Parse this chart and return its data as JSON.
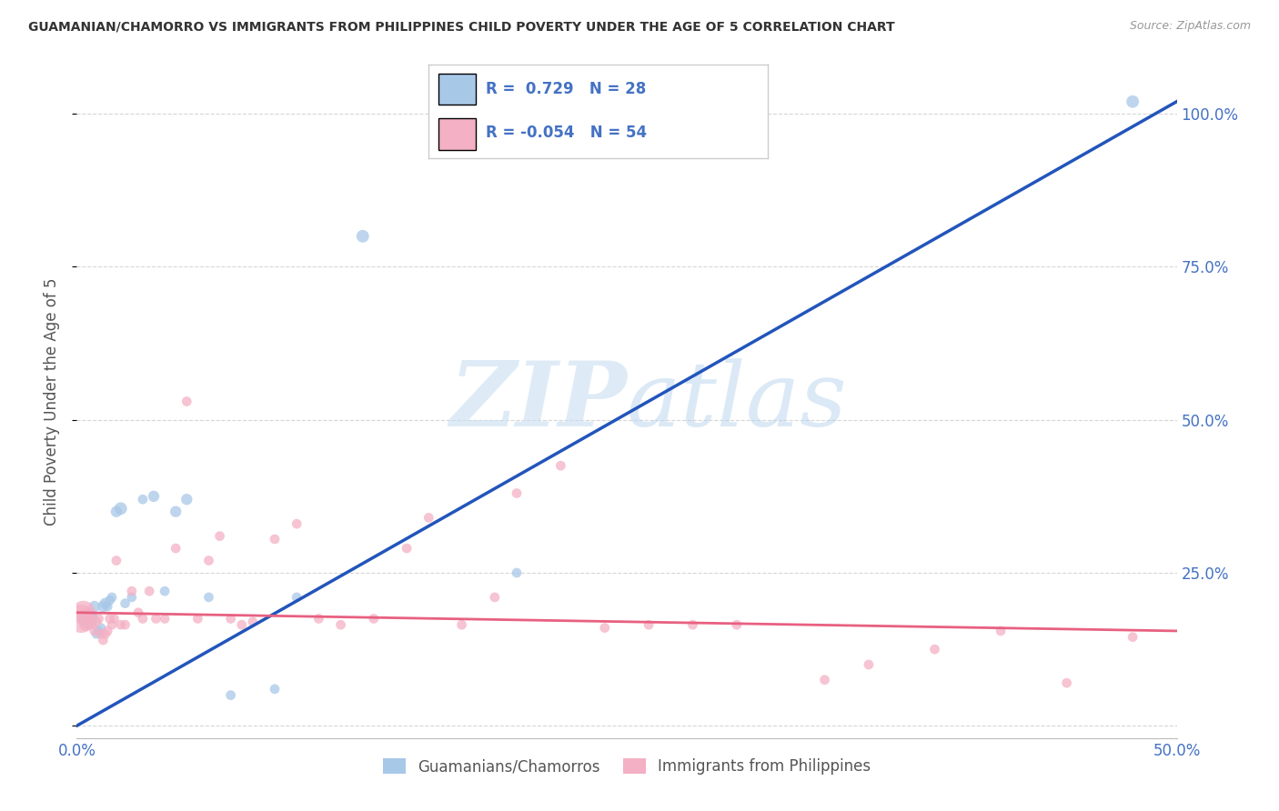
{
  "title": "GUAMANIAN/CHAMORRO VS IMMIGRANTS FROM PHILIPPINES CHILD POVERTY UNDER THE AGE OF 5 CORRELATION CHART",
  "source": "Source: ZipAtlas.com",
  "ylabel": "Child Poverty Under the Age of 5",
  "xlim": [
    0.0,
    0.5
  ],
  "ylim": [
    -0.02,
    1.08
  ],
  "blue_R": 0.729,
  "blue_N": 28,
  "pink_R": -0.054,
  "pink_N": 54,
  "blue_color": "#a8c8e8",
  "pink_color": "#f4b0c4",
  "blue_line_color": "#2255bb",
  "pink_line_color": "#e86080",
  "legend_label_blue": "Guamanians/Chamorros",
  "legend_label_pink": "Immigrants from Philippines",
  "blue_line_x0": 0.0,
  "blue_line_y0": 0.0,
  "blue_line_x1": 0.5,
  "blue_line_y1": 1.02,
  "pink_line_x0": 0.0,
  "pink_line_y0": 0.185,
  "pink_line_x1": 0.5,
  "pink_line_y1": 0.155,
  "blue_points_x": [
    0.003,
    0.005,
    0.007,
    0.008,
    0.009,
    0.01,
    0.011,
    0.012,
    0.013,
    0.014,
    0.015,
    0.016,
    0.018,
    0.02,
    0.022,
    0.025,
    0.03,
    0.035,
    0.04,
    0.045,
    0.05,
    0.06,
    0.07,
    0.09,
    0.1,
    0.13,
    0.2,
    0.48
  ],
  "blue_points_y": [
    0.175,
    0.175,
    0.18,
    0.195,
    0.15,
    0.155,
    0.16,
    0.195,
    0.2,
    0.195,
    0.205,
    0.21,
    0.35,
    0.355,
    0.2,
    0.21,
    0.37,
    0.375,
    0.22,
    0.35,
    0.37,
    0.21,
    0.05,
    0.06,
    0.21,
    0.8,
    0.25,
    1.02
  ],
  "blue_sizes": [
    60,
    250,
    60,
    80,
    60,
    60,
    60,
    80,
    80,
    60,
    60,
    60,
    80,
    100,
    60,
    60,
    60,
    80,
    60,
    80,
    80,
    60,
    60,
    60,
    60,
    100,
    60,
    100
  ],
  "pink_points_x": [
    0.002,
    0.003,
    0.004,
    0.005,
    0.006,
    0.007,
    0.008,
    0.009,
    0.01,
    0.011,
    0.012,
    0.013,
    0.014,
    0.015,
    0.016,
    0.017,
    0.018,
    0.02,
    0.022,
    0.025,
    0.028,
    0.03,
    0.033,
    0.036,
    0.04,
    0.045,
    0.05,
    0.055,
    0.06,
    0.065,
    0.07,
    0.075,
    0.08,
    0.09,
    0.1,
    0.11,
    0.12,
    0.135,
    0.15,
    0.16,
    0.175,
    0.19,
    0.2,
    0.22,
    0.24,
    0.26,
    0.28,
    0.3,
    0.34,
    0.36,
    0.39,
    0.42,
    0.45,
    0.48
  ],
  "pink_points_y": [
    0.175,
    0.185,
    0.165,
    0.185,
    0.175,
    0.165,
    0.155,
    0.17,
    0.175,
    0.15,
    0.14,
    0.15,
    0.155,
    0.175,
    0.165,
    0.175,
    0.27,
    0.165,
    0.165,
    0.22,
    0.185,
    0.175,
    0.22,
    0.175,
    0.175,
    0.29,
    0.53,
    0.175,
    0.27,
    0.31,
    0.175,
    0.165,
    0.17,
    0.305,
    0.33,
    0.175,
    0.165,
    0.175,
    0.29,
    0.34,
    0.165,
    0.21,
    0.38,
    0.425,
    0.16,
    0.165,
    0.165,
    0.165,
    0.075,
    0.1,
    0.125,
    0.155,
    0.07,
    0.145
  ],
  "pink_sizes": [
    500,
    350,
    100,
    80,
    60,
    60,
    60,
    60,
    60,
    60,
    60,
    60,
    60,
    60,
    60,
    60,
    60,
    60,
    60,
    60,
    60,
    60,
    60,
    60,
    60,
    60,
    60,
    60,
    60,
    60,
    60,
    60,
    60,
    60,
    60,
    60,
    60,
    60,
    60,
    60,
    60,
    60,
    60,
    60,
    60,
    60,
    60,
    60,
    60,
    60,
    60,
    60,
    60,
    60
  ],
  "watermark_zip": "ZIP",
  "watermark_atlas": "atlas",
  "background_color": "#ffffff",
  "grid_color": "#cccccc",
  "tick_color": "#4472c4",
  "title_color": "#333333",
  "source_color": "#999999",
  "ylabel_color": "#555555"
}
